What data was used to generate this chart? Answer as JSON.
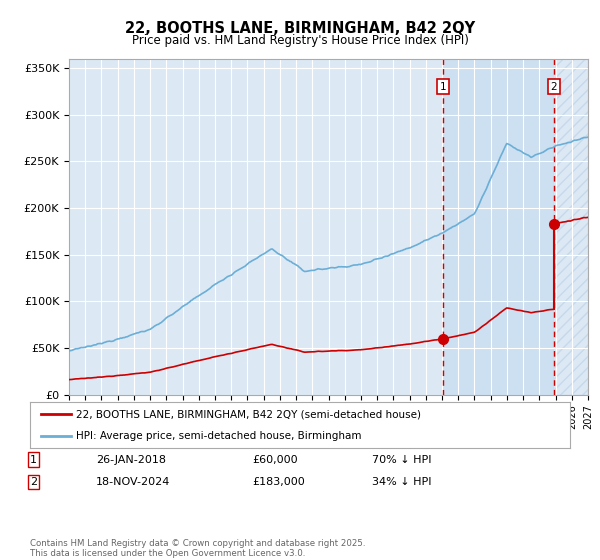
{
  "title": "22, BOOTHS LANE, BIRMINGHAM, B42 2QY",
  "subtitle": "Price paid vs. HM Land Registry's House Price Index (HPI)",
  "hpi_label": "HPI: Average price, semi-detached house, Birmingham",
  "property_label": "22, BOOTHS LANE, BIRMINGHAM, B42 2QY (semi-detached house)",
  "hpi_color": "#6baed6",
  "property_color": "#cc0000",
  "vline_color": "#cc0000",
  "plot_bg_color": "#dce9f5",
  "shade_color": "#c8ddf0",
  "ylim": [
    0,
    360000
  ],
  "yticks": [
    0,
    50000,
    100000,
    150000,
    200000,
    250000,
    300000,
    350000
  ],
  "ytick_labels": [
    "£0",
    "£50K",
    "£100K",
    "£150K",
    "£200K",
    "£250K",
    "£300K",
    "£350K"
  ],
  "sale1_year": 2018.07,
  "sale1_price": 60000,
  "sale2_year": 2024.89,
  "sale2_price": 183000,
  "table_row1": [
    "1",
    "26-JAN-2018",
    "£60,000",
    "70% ↓ HPI"
  ],
  "table_row2": [
    "2",
    "18-NOV-2024",
    "£183,000",
    "34% ↓ HPI"
  ],
  "footer": "Contains HM Land Registry data © Crown copyright and database right 2025.\nThis data is licensed under the Open Government Licence v3.0."
}
